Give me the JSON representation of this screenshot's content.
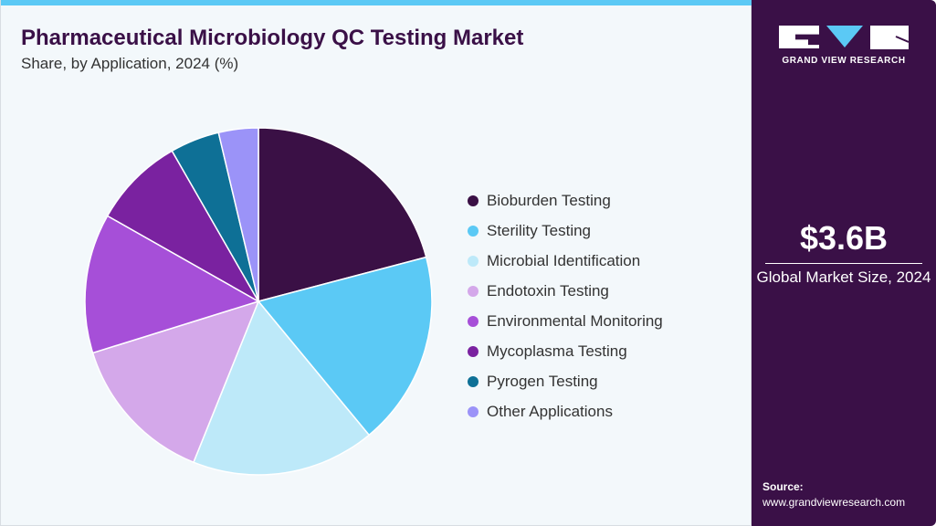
{
  "header": {
    "title": "Pharmaceutical Microbiology QC Testing Market",
    "subtitle": "Share, by Application, 2024 (%)"
  },
  "chart_data": {
    "type": "pie",
    "title": "Pharmaceutical Microbiology QC Testing Market",
    "subtitle": "Share, by Application, 2024 (%)",
    "legend_position": "right",
    "categories": [
      "Bioburden Testing",
      "Sterility Testing",
      "Microbial Identification",
      "Endotoxin Testing",
      "Environmental Monitoring",
      "Mycoplasma Testing",
      "Pyrogen Testing",
      "Other Applications"
    ],
    "values": [
      20.9,
      18.1,
      17.1,
      14.1,
      13.0,
      8.5,
      4.6,
      3.7
    ],
    "colors": [
      "#3a1045",
      "#5bc9f5",
      "#bde9f9",
      "#d4a8ea",
      "#a64fd8",
      "#7a22a0",
      "#0e7096",
      "#9b93f8"
    ]
  },
  "sidebar": {
    "brand": "GRAND VIEW RESEARCH",
    "market_size": "$3.6B",
    "market_size_label": "Global Market Size, 2024",
    "source_label": "Source:",
    "source_url": "www.grandviewresearch.com"
  }
}
